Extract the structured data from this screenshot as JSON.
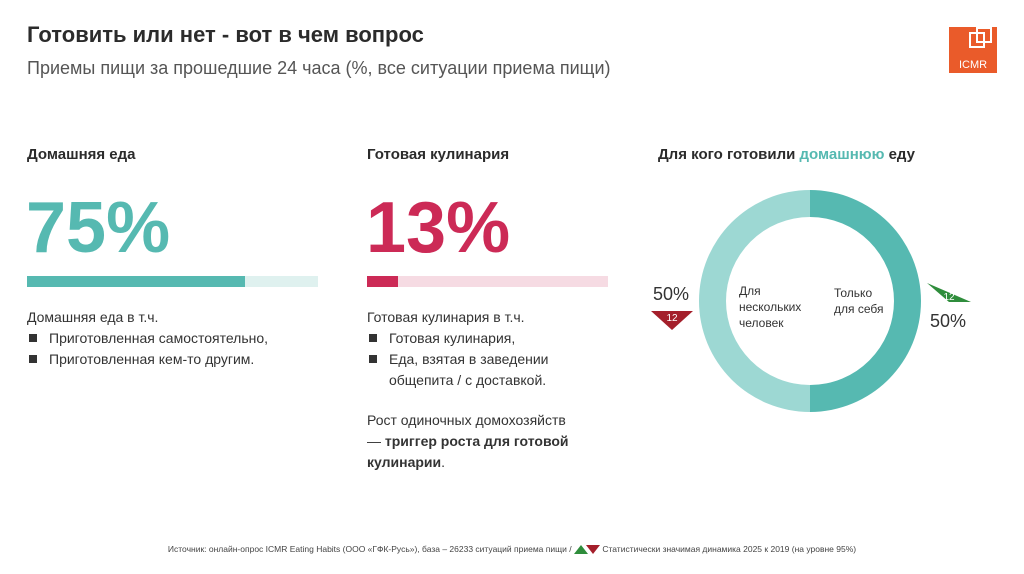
{
  "header": {
    "title": "Готовить или нет - вот в чем вопрос",
    "subtitle": "Приемы пищи за прошедшие 24 часа (%, все ситуации приема пищи)",
    "logo_text": "ICMR"
  },
  "colors": {
    "teal": "#56b9b1",
    "teal_light": "#dff1ef",
    "teal_ring_light": "#9dd8d3",
    "crimson": "#cc2a56",
    "crimson_light": "#f6dbe3",
    "up_green": "#2f8d3c",
    "down_red": "#a41f2b",
    "logo_orange": "#ea5b2a"
  },
  "home_food": {
    "heading": "Домашняя еда",
    "value": "75%",
    "bar_fraction": 0.75,
    "intro": "Домашняя еда в т.ч.",
    "items": [
      "Приготовленная самостоятельно,",
      "Приготовленная кем-то другим."
    ]
  },
  "ready_food": {
    "heading": "Готовая кулинария",
    "value": "13%",
    "bar_fraction": 0.13,
    "intro": "Готовая кулинария в т.ч.",
    "items": [
      "Готовая кулинария,",
      "Еда, взятая в заведении общепита / с доставкой."
    ],
    "note_plain": "Рост одиночных домохозяйств — ",
    "note_bold": "триггер роста для готовой кулинарии",
    "note_end": "."
  },
  "donut": {
    "heading_start": "Для кого готовили ",
    "heading_highlight": "домашнюю",
    "heading_end": " еду",
    "left_label": "Для нескольких человек",
    "right_label": "Только для себя",
    "left_value": "50%",
    "right_value": "50%",
    "left_change": "12",
    "right_change": "12"
  },
  "chart_data": {
    "type": "pie",
    "title": "Для кого готовили домашнюю еду",
    "categories": [
      "Для нескольких человек",
      "Только для себя"
    ],
    "values": [
      50,
      50
    ],
    "changes": [
      {
        "direction": "down",
        "value": 12
      },
      {
        "direction": "up",
        "value": 12
      }
    ]
  },
  "footer": {
    "source": "Источник: онлайн-опрос ICMR Eating Habits (ООО «ГФК-Русь»), база – 26233 ситуаций приема пищи  /",
    "legend": "Статистически значимая динамика 2025 к 2019 (на уровне 95%)"
  }
}
